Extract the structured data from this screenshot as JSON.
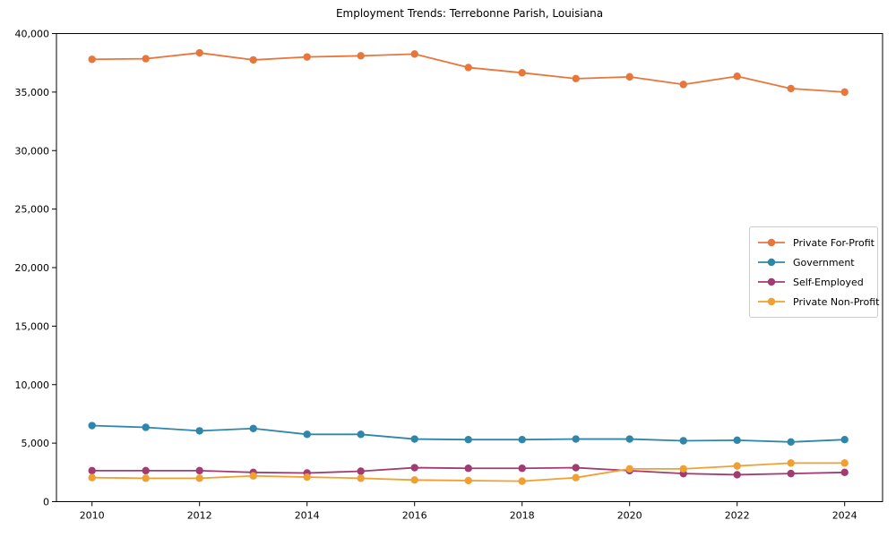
{
  "title": "Employment Trends: Terrebonne Parish, Louisiana",
  "chart_data": {
    "type": "line",
    "title": "Employment Trends: Terrebonne Parish, Louisiana",
    "xlabel": "",
    "ylabel": "",
    "x": [
      2010,
      2011,
      2012,
      2013,
      2014,
      2015,
      2016,
      2017,
      2018,
      2019,
      2020,
      2021,
      2022,
      2023,
      2024
    ],
    "series": [
      {
        "name": "Private For-Profit",
        "color": "#E8763B",
        "values": [
          37800,
          37850,
          38350,
          37750,
          38000,
          38100,
          38250,
          37100,
          36650,
          36150,
          36300,
          35650,
          36350,
          35300,
          35000
        ]
      },
      {
        "name": "Government",
        "color": "#2E86AB",
        "values": [
          6500,
          6350,
          6050,
          6250,
          5750,
          5750,
          5350,
          5300,
          5300,
          5350,
          5350,
          5200,
          5250,
          5100,
          5300
        ]
      },
      {
        "name": "Self-Employed",
        "color": "#A23B72",
        "values": [
          2650,
          2650,
          2650,
          2500,
          2450,
          2600,
          2900,
          2850,
          2850,
          2900,
          2650,
          2400,
          2300,
          2400,
          2500
        ]
      },
      {
        "name": "Private Non-Profit",
        "color": "#F0A030",
        "values": [
          2050,
          2000,
          2000,
          2200,
          2100,
          2000,
          1850,
          1800,
          1750,
          2050,
          2800,
          2800,
          3050,
          3300,
          3300
        ]
      }
    ],
    "xticks": [
      2010,
      2012,
      2014,
      2016,
      2018,
      2020,
      2022,
      2024
    ],
    "yticks": [
      0,
      5000,
      10000,
      15000,
      20000,
      25000,
      30000,
      35000,
      40000
    ],
    "ylim": [
      0,
      40000
    ],
    "grid": false,
    "marker": "circle",
    "legend_position": "center-right",
    "axis_color": "#000000",
    "background_color": "#ffffff"
  }
}
